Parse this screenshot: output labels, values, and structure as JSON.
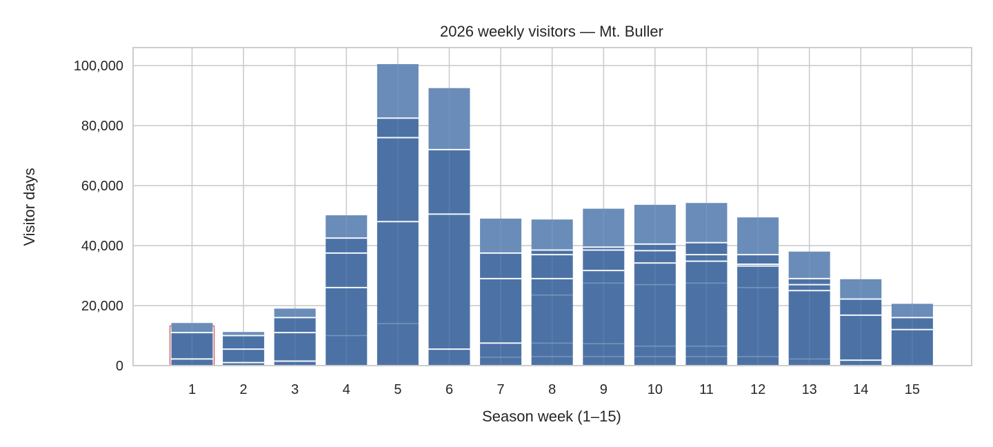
{
  "chart_data": {
    "type": "bar",
    "title": "2026 weekly visitors — Mt. Buller",
    "xlabel": "Season week (1–15)",
    "ylabel": "Visitor days",
    "categories": [
      "1",
      "2",
      "3",
      "4",
      "5",
      "6",
      "7",
      "8",
      "9",
      "10",
      "11",
      "12",
      "13",
      "14",
      "15"
    ],
    "values": [
      14200,
      11200,
      19000,
      50100,
      100500,
      92500,
      49000,
      48700,
      52300,
      53600,
      54200,
      49400,
      38000,
      28800,
      20600
    ],
    "layer_boundaries": [
      [
        11000,
        2200
      ],
      [
        10000,
        5500,
        1000
      ],
      [
        16000,
        11000,
        1500
      ],
      [
        42500,
        37500,
        26000,
        10000
      ],
      [
        82500,
        76000,
        48000,
        14000
      ],
      [
        72000,
        50500,
        5500
      ],
      [
        37500,
        29000,
        7500,
        2800
      ],
      [
        38500,
        37000,
        29000,
        23500,
        7500,
        3000
      ],
      [
        39500,
        38500,
        31700,
        27500,
        7300,
        3000
      ],
      [
        40500,
        38300,
        34200,
        27000,
        6500,
        3000
      ],
      [
        41000,
        37000,
        34800,
        27500,
        6500,
        3000
      ],
      [
        37000,
        33800,
        33200,
        26000,
        3000
      ],
      [
        29000,
        27000,
        25000,
        2200
      ],
      [
        22200,
        16800,
        1800
      ],
      [
        16000,
        12000
      ]
    ],
    "highlight_category": "1",
    "ylim": [
      0,
      106000
    ],
    "yticks": [
      0,
      20000,
      40000,
      60000,
      80000,
      100000
    ],
    "ytick_labels": [
      "0",
      "20,000",
      "40,000",
      "60,000",
      "80,000",
      "100,000"
    ],
    "grid": true,
    "colors": {
      "bar": "#4c72a5",
      "bar_top": "#6a8cb8",
      "grid": "#cccccc",
      "frame": "#cccccc",
      "highlight": "#d62728",
      "separator": "#ffffff"
    }
  }
}
